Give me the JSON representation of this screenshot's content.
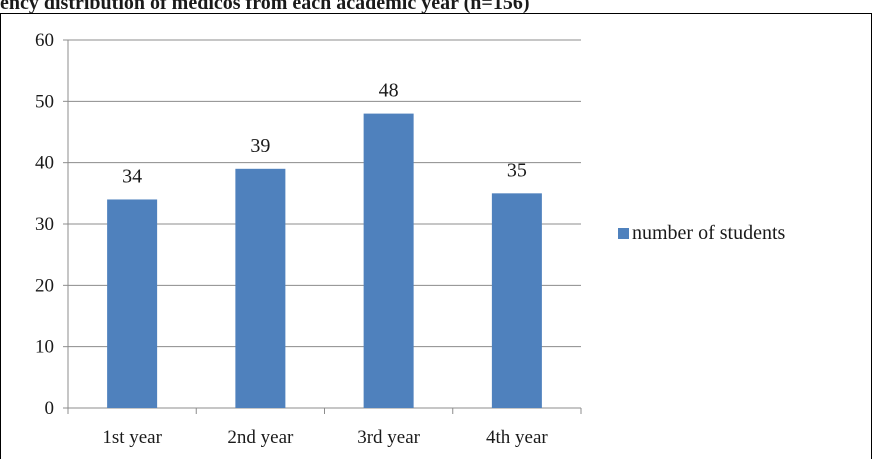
{
  "title": "ency distribution of medicos from each academic year (n=156)",
  "chart_data": {
    "type": "bar",
    "title": "ency distribution of medicos from each academic year (n=156)",
    "categories": [
      "1st year",
      "2nd year",
      "3rd year",
      "4th year"
    ],
    "series": [
      {
        "name": "number of students",
        "values": [
          34,
          39,
          48,
          35
        ],
        "color": "#4f81bd"
      }
    ],
    "data_labels": [
      "34",
      "39",
      "48",
      "35"
    ],
    "y_ticks": [
      0,
      10,
      20,
      30,
      40,
      50,
      60
    ],
    "ylim": [
      0,
      60
    ],
    "xlabel": "",
    "ylabel": "",
    "grid": true,
    "legend_position": "right",
    "colors": {
      "bar": "#4f81bd",
      "grid": "#8c8c8c",
      "axis": "#8c8c8c"
    }
  }
}
